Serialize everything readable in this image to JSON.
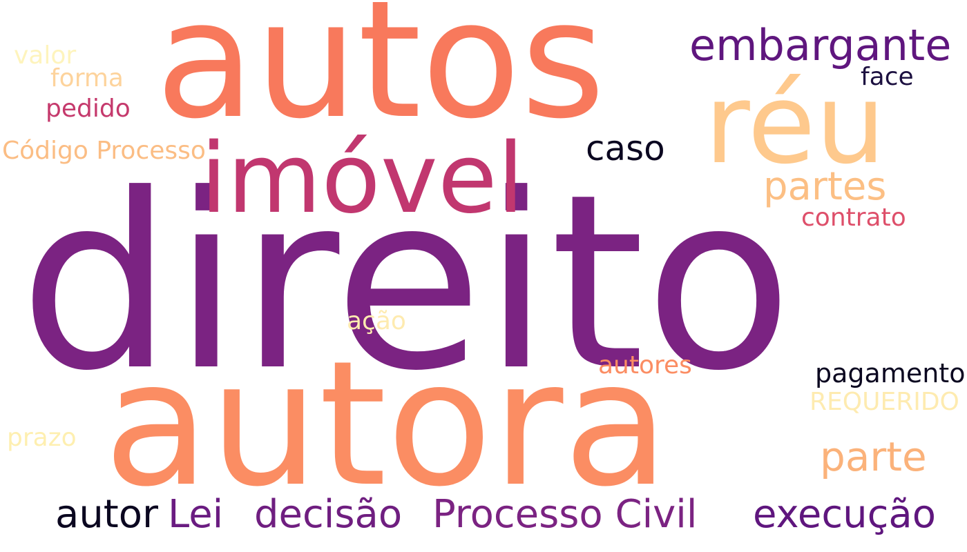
{
  "palette": {
    "deep_purple": "#7b2382",
    "orange": "#f8795c",
    "light_orange": "#fb8d63",
    "peach": "#fec98d",
    "magenta": "#c1376f",
    "dark_violet": "#5f167e",
    "near_black": "#0b0720",
    "pale_yellow": "#feefb0",
    "light_peach": "#fcd29c"
  },
  "words": [
    {
      "text": "direito",
      "color": "#7b2382"
    },
    {
      "text": "autos",
      "color": "#f8795c"
    },
    {
      "text": "autora",
      "color": "#fb8d63"
    },
    {
      "text": "réu",
      "color": "#fec98d"
    },
    {
      "text": "imóvel",
      "color": "#c1376f"
    },
    {
      "text": "embargante",
      "color": "#5f167e"
    },
    {
      "text": "caso",
      "color": "#0b0720"
    },
    {
      "text": "partes",
      "color": "#fcbf84"
    },
    {
      "text": "contrato",
      "color": "#de4f6a"
    },
    {
      "text": "parte",
      "color": "#fbb27a"
    },
    {
      "text": "pagamento",
      "color": "#0b0720"
    },
    {
      "text": "REQUERIDO",
      "color": "#feebb0"
    },
    {
      "text": "autores",
      "color": "#fb8d63"
    },
    {
      "text": "ação",
      "color": "#feebb0"
    },
    {
      "text": "valor",
      "color": "#fef4bd"
    },
    {
      "text": "forma",
      "color": "#fdd39c"
    },
    {
      "text": "pedido",
      "color": "#c5396c"
    },
    {
      "text": "face",
      "color": "#1c1040"
    },
    {
      "text": "Código Processo",
      "color": "#fbbd84"
    },
    {
      "text": "prazo",
      "color": "#feefb0"
    },
    {
      "text": "autor",
      "color": "#0b0720"
    },
    {
      "text": "Lei",
      "color": "#6a1c81"
    },
    {
      "text": "decisão",
      "color": "#6f1e80"
    },
    {
      "text": "Processo Civil",
      "color": "#7b2382"
    },
    {
      "text": "execução",
      "color": "#5f167e"
    }
  ]
}
